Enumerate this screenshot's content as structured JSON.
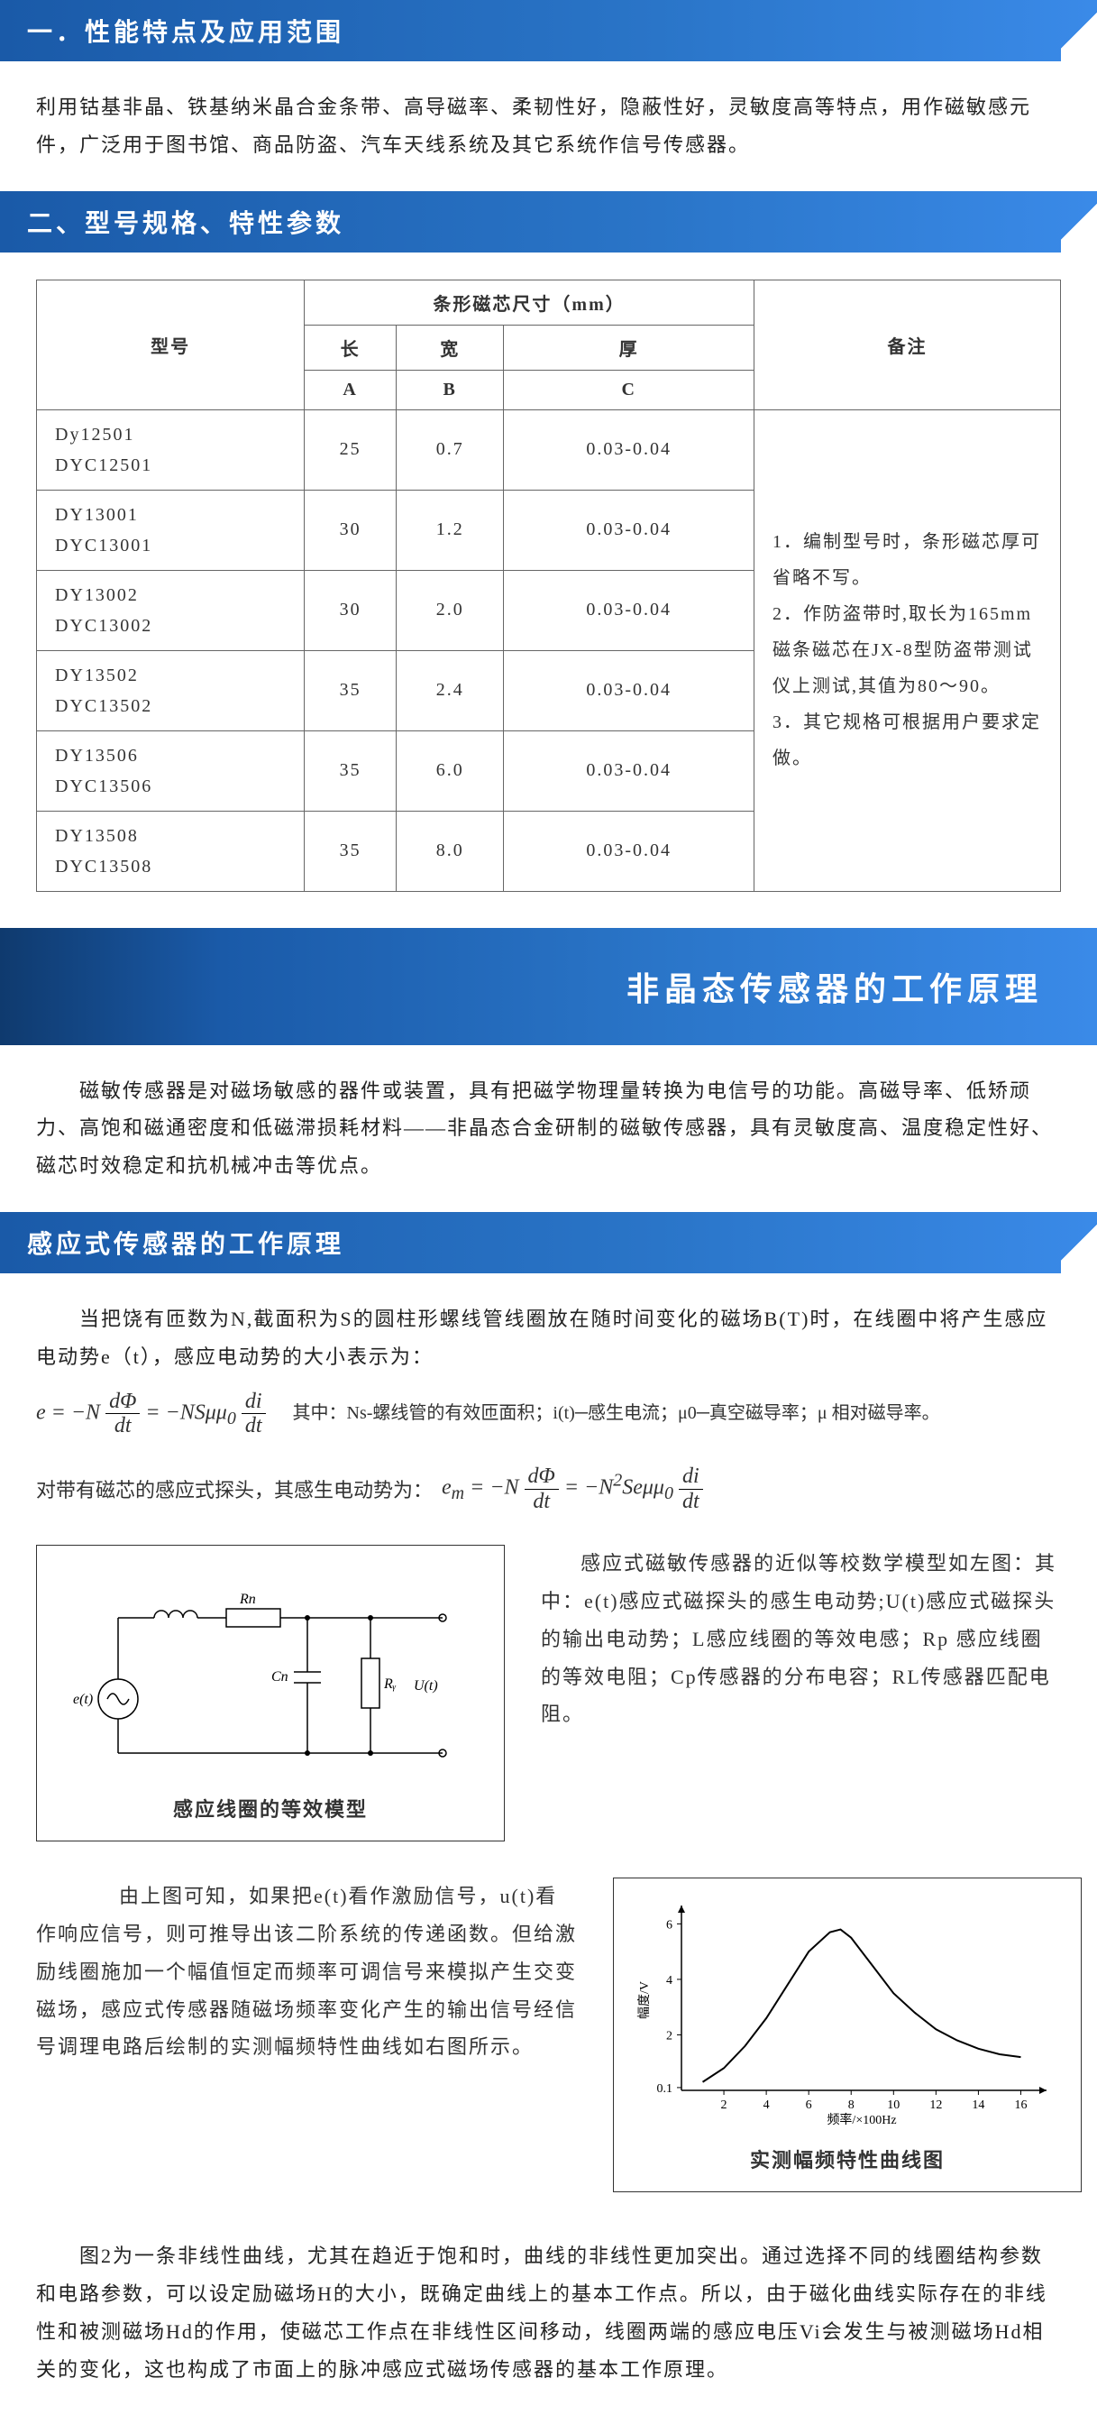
{
  "header1": "一．性能特点及应用范围",
  "intro1": "利用钴基非晶、铁基纳米晶合金条带、高导磁率、柔韧性好，隐蔽性好，灵敏度高等特点，用作磁敏感元件，广泛用于图书馆、商品防盗、汽车天线系统及其它系统作信号传感器。",
  "header2": "二、型号规格、特性参数",
  "table": {
    "model_hdr": "型号",
    "size_hdr": "条形磁芯尺寸（mm）",
    "len_hdr": "长",
    "wid_hdr": "宽",
    "thk_hdr": "厚",
    "A": "A",
    "B": "B",
    "C": "C",
    "remark_hdr": "备注",
    "rows": [
      {
        "model": "Dy12501\nDYC12501",
        "A": "25",
        "B": "0.7",
        "C": "0.03-0.04"
      },
      {
        "model": "DY13001\nDYC13001",
        "A": "30",
        "B": "1.2",
        "C": "0.03-0.04"
      },
      {
        "model": "DY13002\nDYC13002",
        "A": "30",
        "B": "2.0",
        "C": "0.03-0.04"
      },
      {
        "model": "DY13502\nDYC13502",
        "A": "35",
        "B": "2.4",
        "C": "0.03-0.04"
      },
      {
        "model": "DY13506\nDYC13506",
        "A": "35",
        "B": "6.0",
        "C": "0.03-0.04"
      },
      {
        "model": "DY13508\nDYC13508",
        "A": "35",
        "B": "8.0",
        "C": "0.03-0.04"
      }
    ],
    "remark": "1．编制型号时，条形磁芯厚可省略不写。\n2．作防盗带时,取长为165mm磁条磁芯在JX-8型防盗带测试仪上测试,其值为80～90。\n3．其它规格可根据用户要求定做。"
  },
  "banner": "非晶态传感器的工作原理",
  "intro2": "　　磁敏传感器是对磁场敏感的器件或装置，具有把磁学物理量转换为电信号的功能。高磁导率、低矫顽力、高饱和磁通密度和低磁滞损耗材料——非晶态合金研制的磁敏传感器，具有灵敏度高、温度稳定性好、磁芯时效稳定和抗机械冲击等优点。",
  "header3": "感应式传感器的工作原理",
  "para3": "　　当把饶有匝数为N,截面积为S的圆柱形螺线管线圈放在随时间变化的磁场B(T)时，在线圈中将产生感应电动势e（t），感应电动势的大小表示为：",
  "formula1_desc": "其中：Ns-螺线管的有效匝面积；i(t)─感生电流；μ0─真空磁导率；μ 相对磁导率。",
  "para3b": "对带有磁芯的感应式探头，其感生电动势为：",
  "circuit": {
    "caption": "感应线圈的等效模型",
    "e_label": "e(t)",
    "Rn": "Rn",
    "Cn": "Cn",
    "Rr": "Rᵧ",
    "Ut": "U(t)"
  },
  "para4": "感应式磁敏传感器的近似等校数学模型如左图：其中：e(t)感应式磁探头的感生电动势;U(t)感应式磁探头的输出电动势；L感应线圈的等效电感；Rp 感应线圈的等效电阻；Cp传感器的分布电容；RL传感器匹配电阻。",
  "para5": "　　由上图可知，如果把e(t)看作激励信号，u(t)看作响应信号，则可推导出该二阶系统的传递函数。但给激励线圈施加一个幅值恒定而频率可调信号来模拟产生交变磁场，感应式传感器随磁场频率变化产生的输出信号经信号调理电路后绘制的实测幅频特性曲线如右图所示。",
  "chart": {
    "type": "line",
    "caption": "实测幅频特性曲线图",
    "xlabel": "频率/×100Hz",
    "ylabel": "幅度/V",
    "x_ticks": [
      2,
      4,
      6,
      8,
      10,
      12,
      14,
      16
    ],
    "y_ticks": [
      0.1,
      2,
      4,
      6
    ],
    "xlim": [
      0,
      17
    ],
    "ylim": [
      0,
      6.5
    ],
    "points": [
      {
        "x": 1,
        "y": 0.3
      },
      {
        "x": 2,
        "y": 0.8
      },
      {
        "x": 3,
        "y": 1.6
      },
      {
        "x": 4,
        "y": 2.6
      },
      {
        "x": 5,
        "y": 3.8
      },
      {
        "x": 6,
        "y": 5.0
      },
      {
        "x": 7,
        "y": 5.7
      },
      {
        "x": 7.5,
        "y": 5.8
      },
      {
        "x": 8,
        "y": 5.5
      },
      {
        "x": 9,
        "y": 4.5
      },
      {
        "x": 10,
        "y": 3.5
      },
      {
        "x": 11,
        "y": 2.8
      },
      {
        "x": 12,
        "y": 2.2
      },
      {
        "x": 13,
        "y": 1.8
      },
      {
        "x": 14,
        "y": 1.5
      },
      {
        "x": 15,
        "y": 1.3
      },
      {
        "x": 16,
        "y": 1.2
      }
    ],
    "line_color": "#000000",
    "background_color": "#ffffff"
  },
  "para6": "　　图2为一条非线性曲线，尤其在趋近于饱和时，曲线的非线性更加突出。通过选择不同的线圈结构参数和电路参数，可以设定励磁场H的大小，既确定曲线上的基本工作点。所以，由于磁化曲线实际存在的非线性和被测磁场Hd的作用，使磁芯工作点在非线性区间移动，线圈两端的感应电压Vi会发生与被测磁场Hd相关的变化，这也构成了市面上的脉冲感应式磁场传感器的基本工作原理。"
}
